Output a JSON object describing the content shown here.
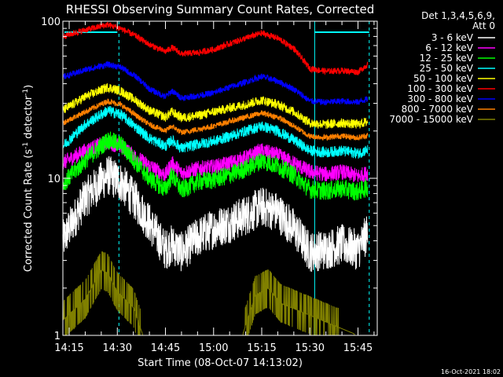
{
  "chart_data": {
    "type": "line",
    "title": "RHESSI Observing Summary Count Rates, Corrected",
    "xlabel": "Start Time (08-Oct-07 14:13:02)",
    "ylabel_main": "Corrected Count Rate (s",
    "ylabel_sup": "-1",
    "ylabel_mid": " detector",
    "ylabel_sup2": "-1",
    "ylabel_end": ")",
    "y_scale": "log",
    "ylim": [
      1,
      100
    ],
    "xlim": [
      "14:13:02",
      "15:51:00"
    ],
    "x_ticks": [
      "14:15",
      "14:30",
      "14:45",
      "15:00",
      "15:15",
      "15:30",
      "15:45"
    ],
    "y_ticks": [
      "1",
      "10",
      "100"
    ],
    "legend_header": [
      "Det 1,3,4,5,6,9,",
      "Att 0"
    ],
    "legend_position": "right",
    "timestamp": "16-Oct-2021 18:02",
    "attenuator_lines": [
      {
        "label": "",
        "x": "14:13:02",
        "style": "solid"
      },
      {
        "label": "",
        "x": "14:30:30",
        "style": "dashed"
      },
      {
        "label": "",
        "x": "15:31:30",
        "style": "solid"
      },
      {
        "label": "",
        "x": "15:48:30",
        "style": "dashed"
      }
    ],
    "series": [
      {
        "name": "3 - 6 keV",
        "color": "#ffffff",
        "x": [
          "14:13",
          "14:20",
          "14:27",
          "14:31",
          "14:36",
          "14:40",
          "14:45",
          "14:47",
          "14:50",
          "14:55",
          "15:00",
          "15:05",
          "15:10",
          "15:15",
          "15:20",
          "15:25",
          "15:30",
          "15:35",
          "15:40",
          "15:45",
          "15:48"
        ],
        "values": [
          4.0,
          7.5,
          10.5,
          9.5,
          7.0,
          5.2,
          3.5,
          3.8,
          3.4,
          4.2,
          4.8,
          5.2,
          5.8,
          6.6,
          6.1,
          4.8,
          3.4,
          3.5,
          3.8,
          3.5,
          4.5
        ]
      },
      {
        "name": "6 - 12 keV",
        "color": "#ff00ff",
        "x": [
          "14:13",
          "14:20",
          "14:27",
          "14:31",
          "14:36",
          "14:40",
          "14:45",
          "14:47",
          "14:50",
          "14:55",
          "15:00",
          "15:05",
          "15:10",
          "15:15",
          "15:20",
          "15:25",
          "15:30",
          "15:35",
          "15:40",
          "15:45",
          "15:48"
        ],
        "values": [
          12.5,
          15,
          17,
          16,
          13.5,
          12,
          10.5,
          12.5,
          10.8,
          11.5,
          11.8,
          12.5,
          13.5,
          15,
          14,
          12.5,
          11,
          10.6,
          11,
          10.3,
          10.8
        ]
      },
      {
        "name": "12 - 25 keV",
        "color": "#00ff00",
        "x": [
          "14:13",
          "14:20",
          "14:27",
          "14:31",
          "14:36",
          "14:40",
          "14:45",
          "14:47",
          "14:50",
          "14:55",
          "15:00",
          "15:05",
          "15:10",
          "15:15",
          "15:20",
          "15:25",
          "15:30",
          "15:35",
          "15:40",
          "15:45",
          "15:48"
        ],
        "values": [
          9.2,
          13,
          17.5,
          16.5,
          12.5,
          10,
          8.5,
          10.5,
          8.4,
          9.5,
          9.8,
          10.5,
          11.5,
          13,
          12,
          10.5,
          8.5,
          8.3,
          8.6,
          8.2,
          8.8
        ]
      },
      {
        "name": "25 - 50 keV",
        "color": "#00ffff",
        "x": [
          "14:13",
          "14:20",
          "14:27",
          "14:31",
          "14:36",
          "14:40",
          "14:45",
          "14:47",
          "14:50",
          "14:55",
          "15:00",
          "15:05",
          "15:10",
          "15:15",
          "15:20",
          "15:25",
          "15:30",
          "15:35",
          "15:40",
          "15:45",
          "15:48"
        ],
        "values": [
          16,
          22,
          27,
          25.5,
          21,
          18,
          16,
          17.5,
          15.5,
          16.5,
          17.2,
          18.5,
          20,
          21.5,
          20,
          17.5,
          15,
          14.6,
          15,
          14.4,
          15.2
        ]
      },
      {
        "name": "50 - 100 keV",
        "color": "#ffff00",
        "x": [
          "14:13",
          "14:20",
          "14:27",
          "14:31",
          "14:36",
          "14:40",
          "14:45",
          "14:47",
          "14:50",
          "14:55",
          "15:00",
          "15:05",
          "15:10",
          "15:15",
          "15:20",
          "15:25",
          "15:30",
          "15:35",
          "15:40",
          "15:45",
          "15:48"
        ],
        "values": [
          27,
          33,
          38,
          36,
          31,
          27,
          24.5,
          26.5,
          24.3,
          25,
          26.5,
          28,
          29.5,
          31.5,
          29.5,
          26.5,
          22.5,
          22,
          22.5,
          22,
          23
        ]
      },
      {
        "name": "100 - 300 keV",
        "color": "#ff0000",
        "x": [
          "14:13",
          "14:20",
          "14:27",
          "14:31",
          "14:36",
          "14:40",
          "14:45",
          "14:47",
          "14:50",
          "14:55",
          "15:00",
          "15:05",
          "15:10",
          "15:15",
          "15:20",
          "15:25",
          "15:30",
          "15:35",
          "15:40",
          "15:45",
          "15:48"
        ],
        "values": [
          80,
          88,
          95,
          90,
          80,
          71,
          64,
          68,
          62,
          63,
          66,
          72,
          78,
          84,
          78,
          67,
          50,
          48,
          48.5,
          47.5,
          53
        ]
      },
      {
        "name": "300 - 800 keV",
        "color": "#0000ff",
        "x": [
          "14:13",
          "14:20",
          "14:27",
          "14:31",
          "14:36",
          "14:40",
          "14:45",
          "14:47",
          "14:50",
          "14:55",
          "15:00",
          "15:05",
          "15:10",
          "15:15",
          "15:20",
          "15:25",
          "15:30",
          "15:35",
          "15:40",
          "15:45",
          "15:48"
        ],
        "values": [
          44,
          49,
          53,
          51,
          44,
          37,
          33,
          36,
          32.5,
          33.5,
          35,
          38,
          41,
          44.5,
          41.5,
          37,
          31,
          30.5,
          31,
          30.5,
          32
        ]
      },
      {
        "name": "800 - 7000 keV",
        "color": "#ff8000",
        "x": [
          "14:13",
          "14:20",
          "14:27",
          "14:31",
          "14:36",
          "14:40",
          "14:45",
          "14:47",
          "14:50",
          "14:55",
          "15:00",
          "15:05",
          "15:10",
          "15:15",
          "15:20",
          "15:25",
          "15:30",
          "15:35",
          "15:40",
          "15:45",
          "15:48"
        ],
        "values": [
          22.5,
          26.5,
          31,
          29.5,
          25,
          22,
          20,
          21.5,
          19.5,
          20.5,
          21.5,
          23,
          24.5,
          26,
          24.5,
          21.5,
          18.5,
          18.2,
          18.6,
          18.1,
          18.8
        ]
      },
      {
        "name": "7000 - 15000 keV",
        "color": "#808000",
        "x": [
          "14:13",
          "14:20",
          "14:25",
          "14:27",
          "14:30",
          "14:35",
          "14:38",
          "15:09",
          "15:13",
          "15:17",
          "15:21",
          "15:45"
        ],
        "values": [
          1.25,
          1.7,
          2.6,
          2.5,
          1.9,
          1.5,
          1.0,
          1.0,
          1.8,
          2.0,
          1.6,
          1.0
        ]
      }
    ]
  }
}
